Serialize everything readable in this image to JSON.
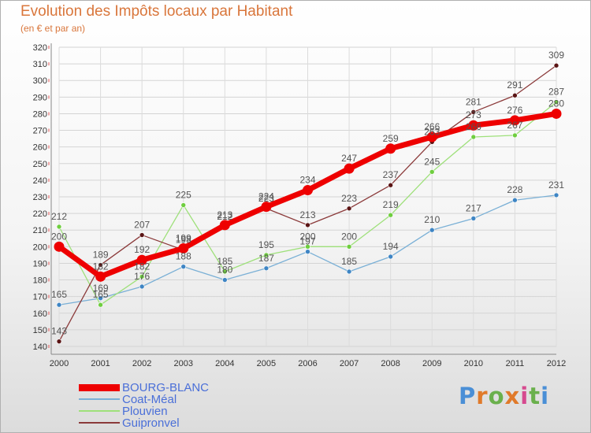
{
  "header": {
    "title": "Evolution des Impôts locaux par Habitant",
    "subtitle": "(en € et par an)"
  },
  "brand": {
    "parts": [
      "P",
      "r",
      "o",
      "x",
      "i",
      "t",
      "i"
    ]
  },
  "colors": {
    "title": "#d9763b",
    "brand": [
      "#4a8fd6",
      "#e07a2a",
      "#6ab04c",
      "#e07a2a",
      "#d64a8f",
      "#6ab04c",
      "#4a8fd6"
    ]
  },
  "chart_data": {
    "type": "line",
    "title": "Evolution des Impôts locaux par Habitant",
    "subtitle": "(en € et par an)",
    "xlabel": "",
    "ylabel": "",
    "x": [
      "2000",
      "2001",
      "2002",
      "2003",
      "2004",
      "2005",
      "2006",
      "2007",
      "2008",
      "2009",
      "2010",
      "2011",
      "2012"
    ],
    "ylim": [
      140,
      320
    ],
    "yticks": [
      140,
      150,
      160,
      170,
      180,
      190,
      200,
      210,
      220,
      230,
      240,
      250,
      260,
      270,
      280,
      290,
      300,
      310,
      320
    ],
    "grid": true,
    "legend_position": "bottom-left",
    "series": [
      {
        "name": "BOURG-BLANC",
        "color": "#ee0000",
        "dot": "#ee0000",
        "labels": "#555555",
        "thick": true,
        "values": [
          200,
          182,
          192,
          199,
          213,
          224,
          234,
          247,
          259,
          266,
          273,
          276,
          280
        ]
      },
      {
        "name": "Coat-Méal",
        "color": "#7ab0d6",
        "dot": "#3e85c4",
        "labels": "#555555",
        "thick": false,
        "values": [
          165,
          169,
          176,
          188,
          180,
          187,
          197,
          185,
          194,
          210,
          217,
          228,
          231
        ]
      },
      {
        "name": "Plouvien",
        "color": "#9ee07a",
        "dot": "#6fce3f",
        "labels": "#555555",
        "thick": false,
        "values": [
          212,
          165,
          182,
          225,
          185,
          195,
          200,
          200,
          219,
          245,
          266,
          267,
          287
        ]
      },
      {
        "name": "Guipronvel",
        "color": "#8b3a3a",
        "dot": "#5a1414",
        "labels": "#555555",
        "thick": false,
        "values": [
          143,
          189,
          207,
          198,
          212,
          223,
          213,
          223,
          237,
          263,
          281,
          291,
          309
        ]
      }
    ]
  }
}
